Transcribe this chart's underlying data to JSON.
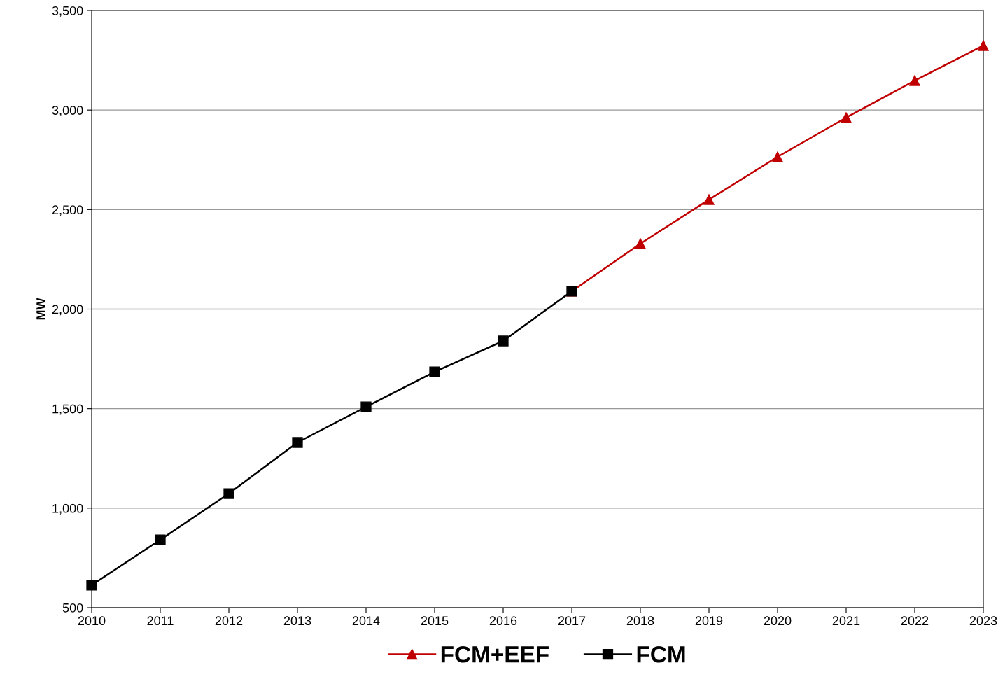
{
  "chart_data": {
    "type": "line",
    "ylabel": "MW",
    "categories": [
      "2010",
      "2011",
      "2012",
      "2013",
      "2014",
      "2015",
      "2016",
      "2017",
      "2018",
      "2019",
      "2020",
      "2021",
      "2022",
      "2023"
    ],
    "series": [
      {
        "name": "FCM+EEF",
        "color": "#c00000",
        "marker": "triangle",
        "values": [
          null,
          null,
          null,
          null,
          null,
          null,
          null,
          2090,
          2329,
          2550,
          2765,
          2962,
          3148,
          3324
        ]
      },
      {
        "name": "FCM",
        "color": "#000000",
        "marker": "square",
        "values": [
          613,
          841,
          1073,
          1330,
          1509,
          1685,
          1840,
          2090,
          null,
          null,
          null,
          null,
          null,
          null
        ]
      }
    ],
    "ylim": [
      500,
      3500
    ],
    "yticks": [
      {
        "value": 500,
        "label": "500"
      },
      {
        "value": 1000,
        "label": "1,000"
      },
      {
        "value": 1500,
        "label": "1,500"
      },
      {
        "value": 2000,
        "label": "2,000"
      },
      {
        "value": 2500,
        "label": "2,500"
      },
      {
        "value": 3000,
        "label": "3,000"
      },
      {
        "value": 3500,
        "label": "3,500"
      }
    ],
    "grid": "y",
    "legend": "bottom",
    "line_style": "solid"
  }
}
